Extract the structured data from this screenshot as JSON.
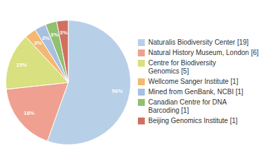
{
  "chart_data": {
    "type": "pie",
    "categories": [
      "Naturalis Biodiversity Center [19]",
      "Natural History Museum, London [6]",
      "Centre for Biodiversity\nGenomics [5]",
      "Wellcome Sanger Institute [1]",
      "Mined from GenBank, NCBI [1]",
      "Canadian Centre for DNA\nBarcoding [1]",
      "Beijing Genomics Institute [1]"
    ],
    "values": [
      56,
      18,
      15,
      3,
      3,
      3,
      3
    ],
    "value_labels": [
      "56%",
      "18%",
      "15%",
      "3%",
      "3%",
      "3%",
      "3%"
    ],
    "colors": [
      "#b8cfe8",
      "#f0a090",
      "#d8e080",
      "#f5b870",
      "#a8c0e0",
      "#90c070",
      "#d07060"
    ],
    "data_labels": true,
    "legend": "right"
  }
}
